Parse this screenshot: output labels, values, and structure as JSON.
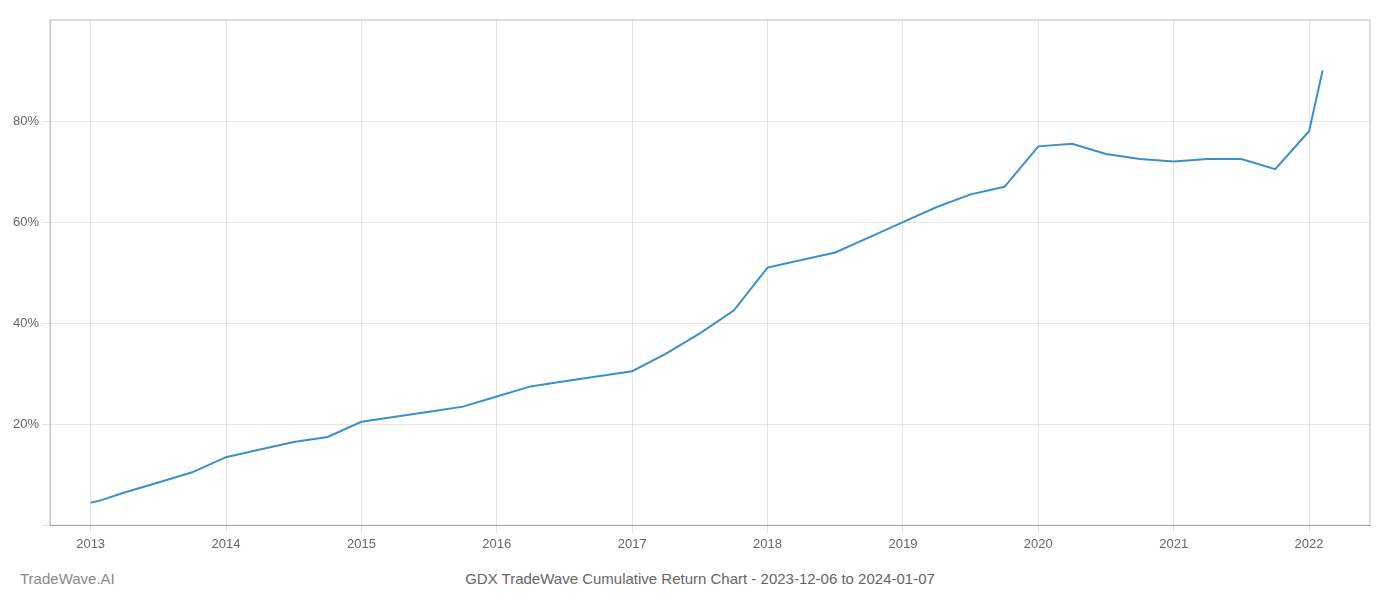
{
  "chart_data": {
    "type": "line",
    "title": "GDX TradeWave Cumulative Return Chart - 2023-12-06 to 2024-01-07",
    "annotations": [
      "TradeWave.AI"
    ],
    "color": "#3d8fc7",
    "x": [
      2013.0,
      2013.08,
      2013.25,
      2013.5,
      2013.75,
      2014.0,
      2014.25,
      2014.5,
      2014.75,
      2015.0,
      2015.25,
      2015.5,
      2015.75,
      2016.0,
      2016.25,
      2016.5,
      2016.75,
      2017.0,
      2017.25,
      2017.5,
      2017.75,
      2018.0,
      2018.25,
      2018.5,
      2018.75,
      2019.0,
      2019.25,
      2019.5,
      2019.75,
      2020.0,
      2020.25,
      2020.5,
      2020.75,
      2021.0,
      2021.25,
      2021.5,
      2021.75,
      2022.0,
      2022.1
    ],
    "values": [
      4.5,
      5.0,
      6.5,
      8.5,
      10.5,
      13.5,
      15.0,
      16.5,
      17.5,
      20.5,
      21.5,
      22.5,
      23.5,
      25.5,
      27.5,
      28.5,
      29.5,
      30.5,
      34.0,
      38.0,
      42.5,
      51.0,
      52.5,
      54.0,
      57.0,
      60.0,
      63.0,
      65.5,
      67.0,
      75.0,
      75.5,
      73.5,
      72.5,
      72.0,
      72.5,
      72.5,
      70.5,
      78.0,
      90.0
    ],
    "xlim": [
      2012.7,
      2022.45
    ],
    "ylim": [
      0,
      100
    ],
    "xticks": [
      2013,
      2014,
      2015,
      2016,
      2017,
      2018,
      2019,
      2020,
      2021,
      2022
    ],
    "yticks": [
      {
        "value": 0,
        "label": ""
      },
      {
        "value": 20,
        "label": "20%"
      },
      {
        "value": 40,
        "label": "40%"
      },
      {
        "value": 60,
        "label": "60%"
      },
      {
        "value": 80,
        "label": "80%"
      }
    ],
    "grid": true
  }
}
